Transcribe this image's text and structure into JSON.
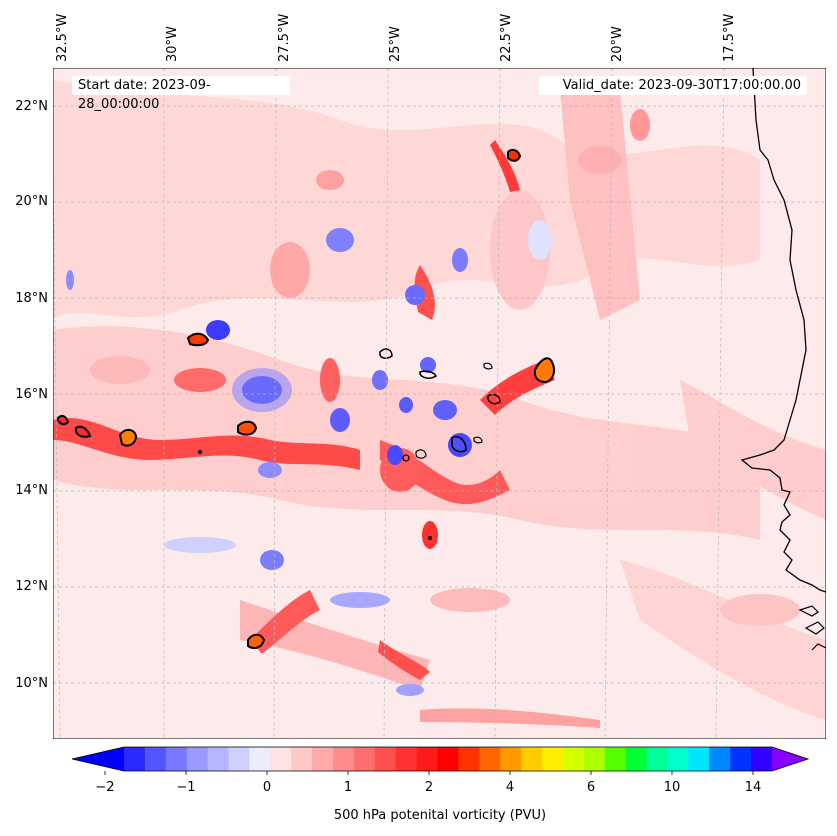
{
  "map": {
    "lon_labels": [
      "32.5°W",
      "30°W",
      "27.5°W",
      "25°W",
      "22.5°W",
      "20°W",
      "17.5°W"
    ],
    "lat_labels": [
      "22°N",
      "20°N",
      "18°N",
      "16°N",
      "14°N",
      "12°N",
      "10°N"
    ],
    "start_date": "Start date: 2023-09-28_00:00:00",
    "valid_date": "Valid_date: 2023-09-30T17:00:00.00",
    "background_color": "#fdeaea",
    "coastline_color": "#000000"
  },
  "colorbar": {
    "ticks": [
      "−2",
      "−1",
      "0",
      "1",
      "2",
      "4",
      "6",
      "10",
      "14"
    ],
    "label": "500 hPa potenital vorticity (PVU)",
    "colors": [
      "#0000ff",
      "#2a2aff",
      "#5555ff",
      "#7777ff",
      "#9999ff",
      "#b4b4ff",
      "#d0d0ff",
      "#ececff",
      "#ffe2e2",
      "#ffc8c8",
      "#ffaaaa",
      "#ff8c8c",
      "#ff6e6e",
      "#ff5050",
      "#ff3232",
      "#ff1a1a",
      "#ff0000",
      "#ff3300",
      "#ff6600",
      "#ff9900",
      "#ffcc00",
      "#ffee00",
      "#d4ff00",
      "#aaff00",
      "#55ff00",
      "#00ff33",
      "#00ff99",
      "#00ffcc",
      "#00e5ff",
      "#0088ff",
      "#0033ff",
      "#3300ff",
      "#8800ff"
    ]
  }
}
